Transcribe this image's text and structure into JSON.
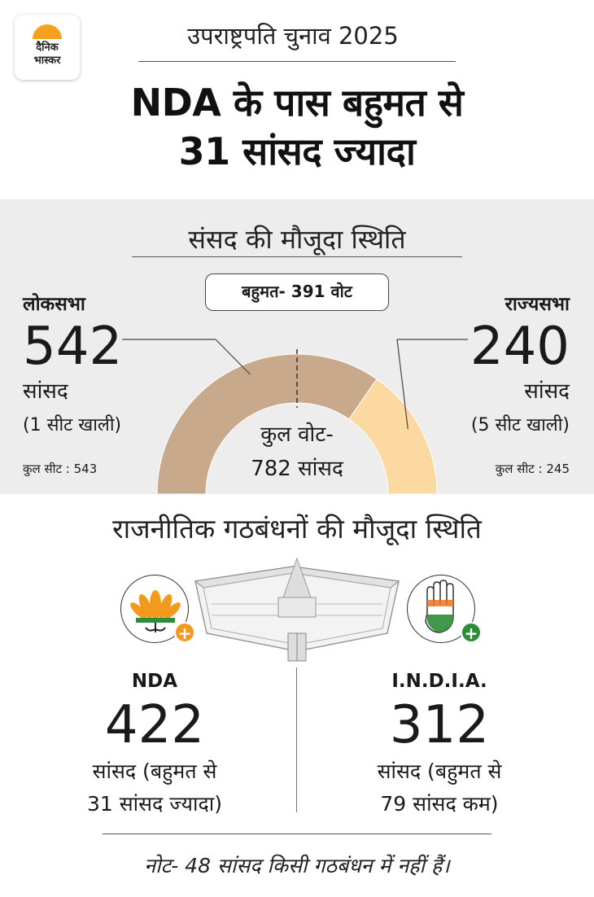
{
  "branding": {
    "logo_line1": "दैनिक",
    "logo_line2": "भास्कर",
    "logo_color": "#f4a11d"
  },
  "header": {
    "kicker": "उपराष्ट्रपति चुनाव 2025",
    "headline_line1": "NDA के पास बहुमत से",
    "headline_line2": "31 सांसद ज्यादा"
  },
  "parliament": {
    "title": "संसद की मौजूदा स्थिति",
    "majority_label": "बहुमत- 391 वोट",
    "lok_sabha": {
      "name": "लोकसभा",
      "members": "542",
      "unit": "सांसद",
      "vacancy": "(1 सीट खाली)",
      "total_seats": "कुल सीट : 543"
    },
    "rajya_sabha": {
      "name": "राज्यसभा",
      "members": "240",
      "unit": "सांसद",
      "vacancy": "(5 सीट खाली)",
      "total_seats": "कुल सीट : 245"
    },
    "total_line1": "कुल वोट-",
    "total_line2": "782 सांसद"
  },
  "alliances": {
    "title": "राजनीतिक गठबंधनों की मौजूदा स्थिति",
    "nda": {
      "name": "NDA",
      "members": "422",
      "line1": "सांसद (बहुमत से",
      "line2": "31 सांसद ज्यादा)",
      "icon": "bjp-lotus-icon",
      "badge_color": "#f39a1e"
    },
    "india": {
      "name": "I.N.D.I.A.",
      "members": "312",
      "line1": "सांसद (बहुमत से",
      "line2": "79 सांसद कम)",
      "icon": "congress-hand-icon",
      "badge_color": "#2e8c3a"
    },
    "note": "नोट- 48 सांसद किसी गठबंधन में नहीं हैं।"
  },
  "chart_data": {
    "type": "pie",
    "categories": [
      "लोकसभा",
      "राज्यसभा"
    ],
    "values": [
      542,
      240
    ],
    "total": 782,
    "majority_mark": 391,
    "shape": "half-donut",
    "colors": {
      "lok_sabha": "#c9a98b",
      "rajya_sabha": "#fbd9a0",
      "outline": "#ffffff"
    }
  }
}
